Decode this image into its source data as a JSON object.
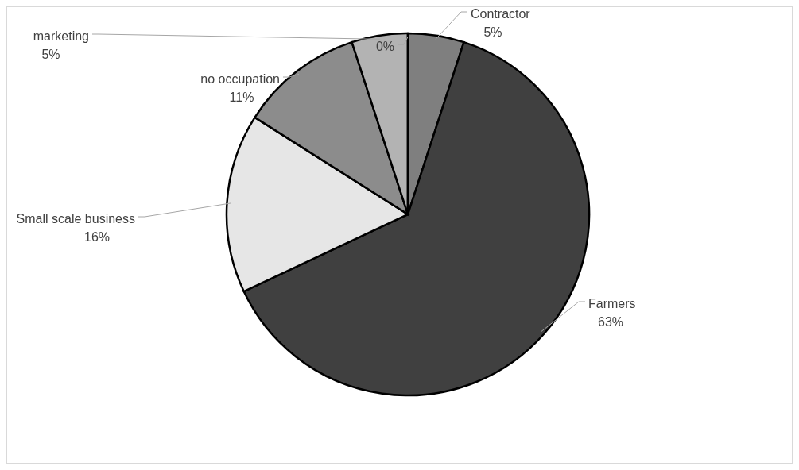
{
  "chart_data": {
    "type": "pie",
    "categories": [
      "Contractor",
      "Farmers",
      "Small scale business",
      "no occupation",
      "marketing",
      null
    ],
    "values": [
      5,
      63,
      16,
      11,
      5,
      0
    ],
    "value_labels": [
      "5%",
      "63%",
      "16%",
      "11%",
      "5%",
      "0%"
    ],
    "colors": [
      "#7f7f7f",
      "#404040",
      "#e6e6e6",
      "#8c8c8c",
      "#b3b3b3",
      "#ffffff"
    ]
  }
}
